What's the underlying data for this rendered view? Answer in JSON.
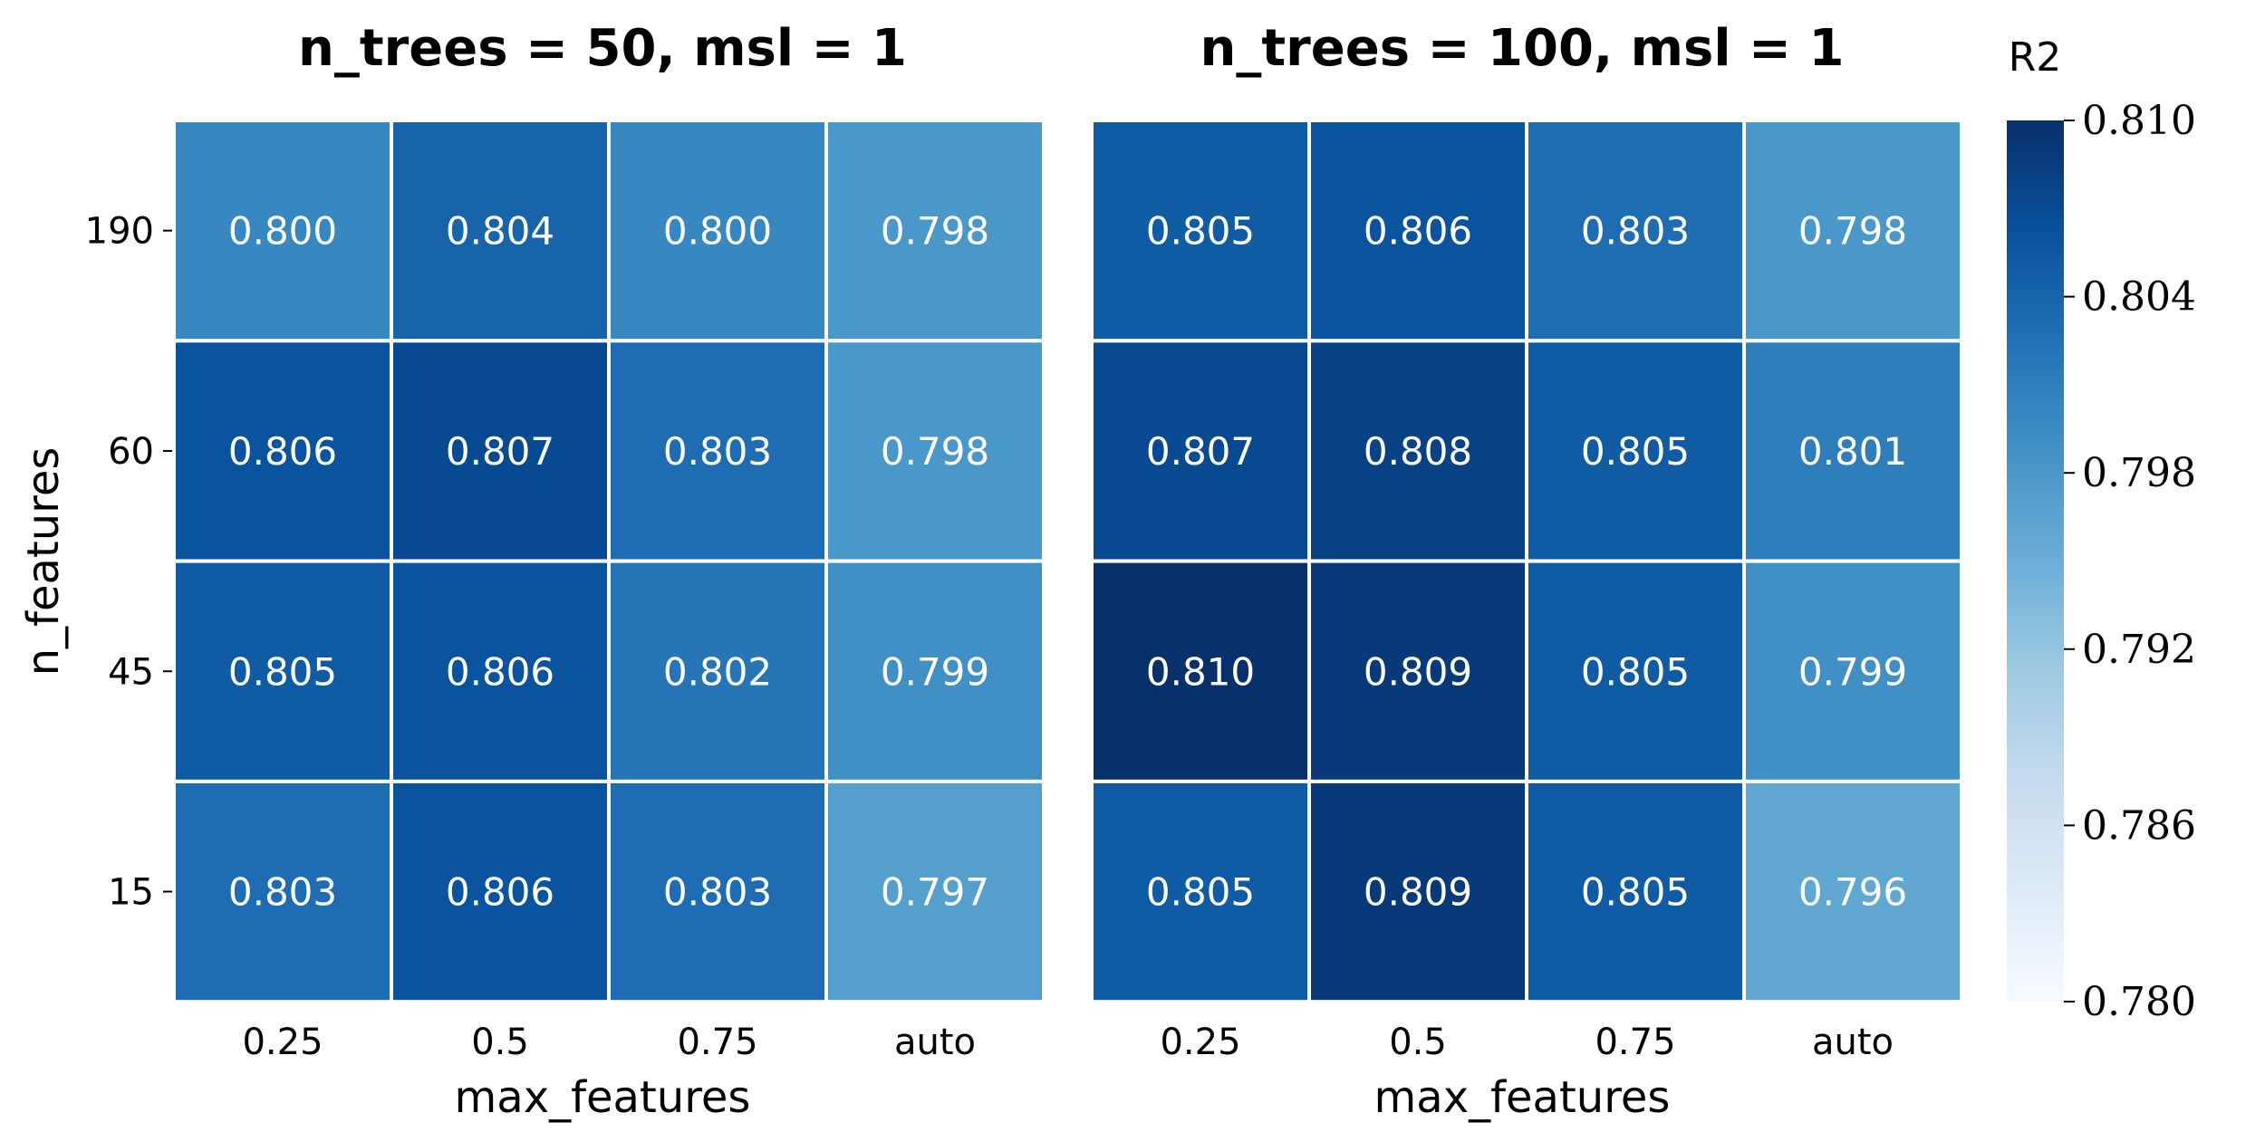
{
  "chart_data": [
    {
      "type": "heatmap",
      "title": "n_trees = 50, msl = 1",
      "xlabel": "max_features",
      "ylabel": "n_features",
      "x_categories": [
        "0.25",
        "0.5",
        "0.75",
        "auto"
      ],
      "y_categories": [
        "190",
        "60",
        "45",
        "15"
      ],
      "values": [
        [
          0.8,
          0.804,
          0.8,
          0.798
        ],
        [
          0.806,
          0.807,
          0.803,
          0.798
        ],
        [
          0.805,
          0.806,
          0.802,
          0.799
        ],
        [
          0.803,
          0.806,
          0.803,
          0.797
        ]
      ],
      "value_format": "3 decimals",
      "colormap": "Blues"
    },
    {
      "type": "heatmap",
      "title": "n_trees = 100, msl = 1",
      "xlabel": "max_features",
      "ylabel": "",
      "x_categories": [
        "0.25",
        "0.5",
        "0.75",
        "auto"
      ],
      "y_categories": [
        "190",
        "60",
        "45",
        "15"
      ],
      "values": [
        [
          0.805,
          0.806,
          0.803,
          0.798
        ],
        [
          0.807,
          0.808,
          0.805,
          0.801
        ],
        [
          0.81,
          0.809,
          0.805,
          0.799
        ],
        [
          0.805,
          0.809,
          0.805,
          0.796
        ]
      ],
      "value_format": "3 decimals",
      "colormap": "Blues"
    }
  ],
  "colorbar": {
    "label": "R2",
    "vmin": 0.78,
    "vmax": 0.81,
    "ticks": [
      "0.810",
      "0.804",
      "0.798",
      "0.792",
      "0.786",
      "0.780"
    ]
  },
  "colors": {
    "colormap_stops": [
      "#f7fbff",
      "#deebf7",
      "#c6dbef",
      "#9ecae1",
      "#6baed6",
      "#4292c6",
      "#2171b5",
      "#08519c",
      "#08306b"
    ],
    "cell_text": "#ffffff",
    "grid_lines": "#ffffff",
    "axis_text": "#000000"
  }
}
